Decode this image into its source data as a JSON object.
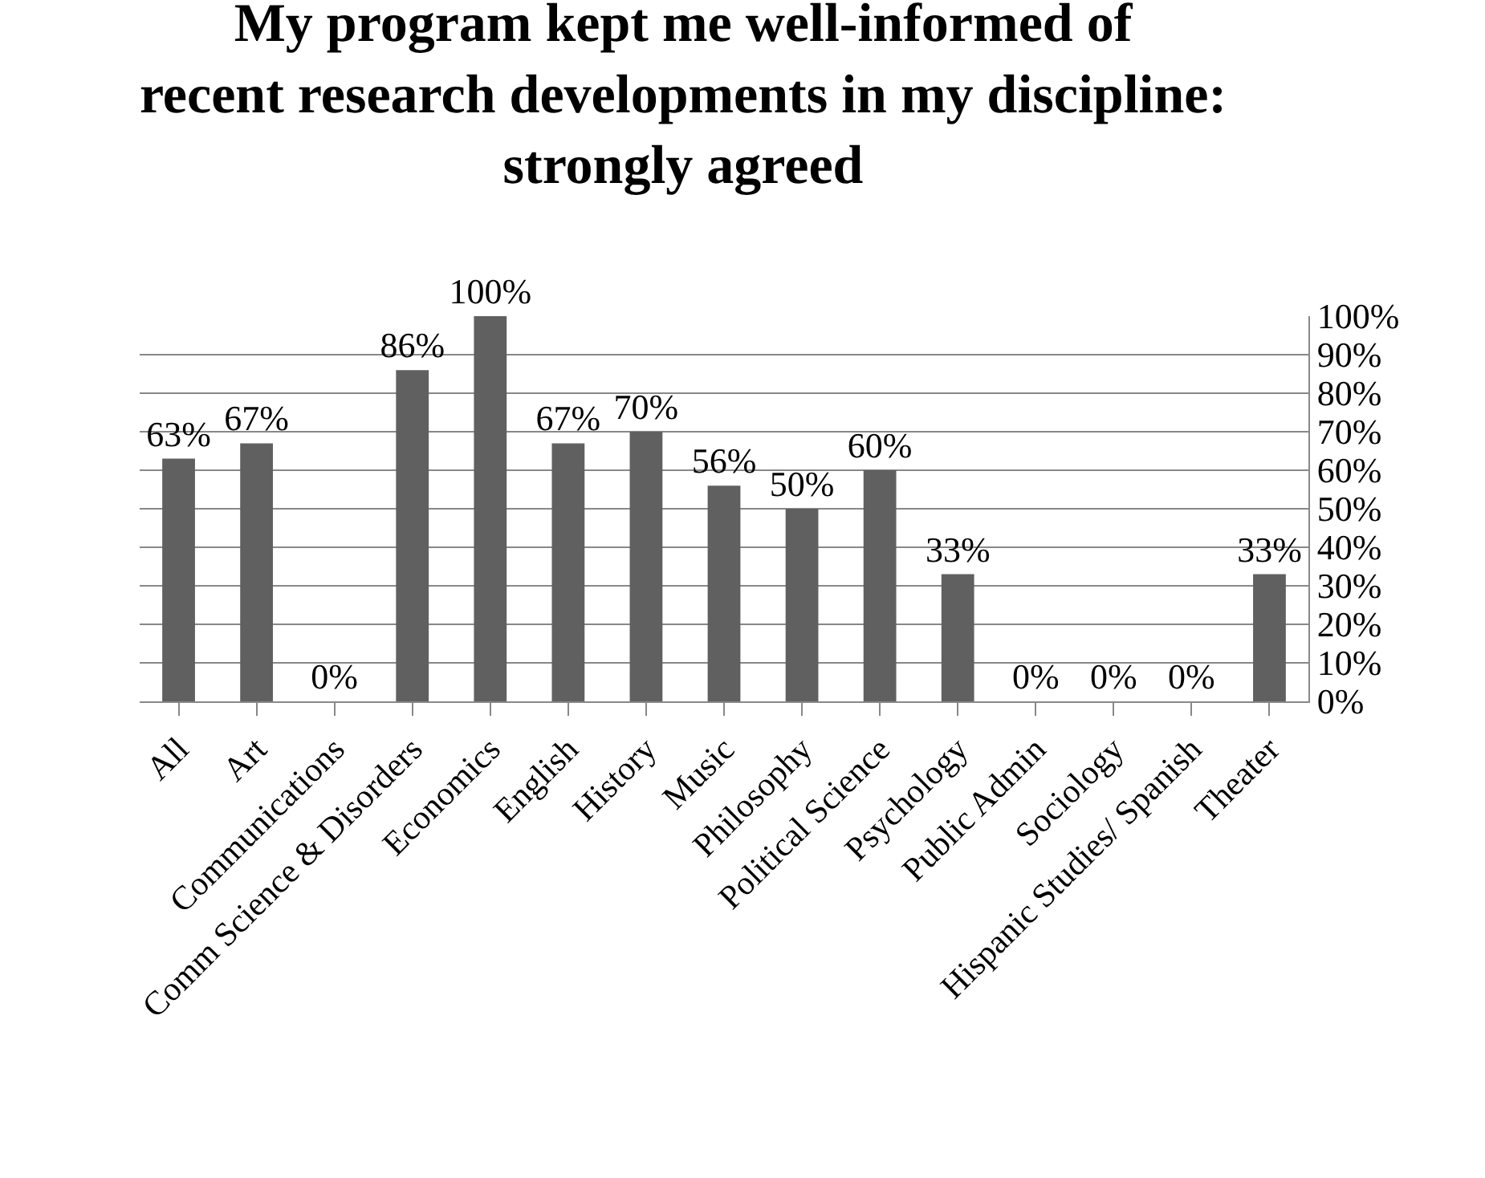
{
  "chart_data": {
    "type": "bar",
    "title": "My program kept me well-informed of recent research developments in my discipline: strongly agreed",
    "categories": [
      "All",
      "Art",
      "Communications",
      "Comm Science & Disorders",
      "Economics",
      "English",
      "History",
      "Music",
      "Philosophy",
      "Political Science",
      "Psychology",
      "Public Admin",
      "Sociology",
      "Hispanic Studies/ Spanish",
      "Theater"
    ],
    "values": [
      63,
      67,
      0,
      86,
      100,
      67,
      70,
      56,
      50,
      60,
      33,
      0,
      0,
      0,
      33
    ],
    "value_labels": [
      "63%",
      "67%",
      "0%",
      "86%",
      "100%",
      "67%",
      "70%",
      "56%",
      "50%",
      "60%",
      "33%",
      "0%",
      "0%",
      "0%",
      "33%"
    ],
    "color": "#606060",
    "ylim": [
      0,
      100
    ],
    "yticks": [
      {
        "value": 0,
        "label": "0%"
      },
      {
        "value": 10,
        "label": "10%"
      },
      {
        "value": 20,
        "label": "20%"
      },
      {
        "value": 30,
        "label": "30%"
      },
      {
        "value": 40,
        "label": "40%"
      },
      {
        "value": 50,
        "label": "50%"
      },
      {
        "value": 60,
        "label": "60%"
      },
      {
        "value": 70,
        "label": "70%"
      },
      {
        "value": 80,
        "label": "80%"
      },
      {
        "value": 90,
        "label": "90%"
      },
      {
        "value": 100,
        "label": "100%"
      }
    ],
    "grid": "y",
    "legend": false
  }
}
